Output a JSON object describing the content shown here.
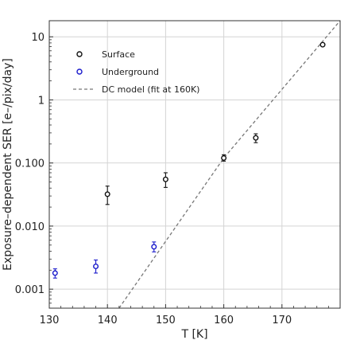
{
  "chart_data": {
    "type": "scatter",
    "title": "",
    "xlabel": "T [K]",
    "ylabel": "Exposure–dependent SER [e–/pix/day]",
    "xlim": [
      130,
      180
    ],
    "ylim": [
      0.0005,
      18
    ],
    "y_scale": "log",
    "grid": true,
    "legend_position": "top-left",
    "x_ticks": [
      130,
      140,
      150,
      160,
      170
    ],
    "x_tick_labels": [
      "130",
      "140",
      "150",
      "160",
      "170"
    ],
    "y_ticks": [
      0.001,
      0.01,
      0.1,
      1,
      10
    ],
    "y_tick_labels": [
      "0.001",
      "0.010",
      "0.100",
      "1",
      "10"
    ],
    "series": [
      {
        "name": "Surface",
        "color": "#111111",
        "marker": "open-circle",
        "points": [
          {
            "x": 140,
            "y": 0.032,
            "y_low": 0.022,
            "y_high": 0.043
          },
          {
            "x": 150,
            "y": 0.055,
            "y_low": 0.041,
            "y_high": 0.07
          },
          {
            "x": 160,
            "y": 0.12,
            "y_low": 0.107,
            "y_high": 0.135
          },
          {
            "x": 165.5,
            "y": 0.25,
            "y_low": 0.21,
            "y_high": 0.29
          },
          {
            "x": 177,
            "y": 7.5,
            "y_low": 7.2,
            "y_high": 7.8
          }
        ]
      },
      {
        "name": "Underground",
        "color": "#1a1acc",
        "marker": "open-circle",
        "points": [
          {
            "x": 131,
            "y": 0.0018,
            "y_low": 0.0015,
            "y_high": 0.0021
          },
          {
            "x": 138,
            "y": 0.0023,
            "y_low": 0.0018,
            "y_high": 0.0029
          },
          {
            "x": 148,
            "y": 0.0047,
            "y_low": 0.0039,
            "y_high": 0.0056
          }
        ]
      },
      {
        "name": "DC model (fit at 160K)",
        "color": "#777777",
        "line_style": "dashed",
        "points": [
          {
            "x": 142,
            "y": 0.0005
          },
          {
            "x": 160,
            "y": 0.12
          },
          {
            "x": 180,
            "y": 18
          }
        ]
      }
    ]
  }
}
